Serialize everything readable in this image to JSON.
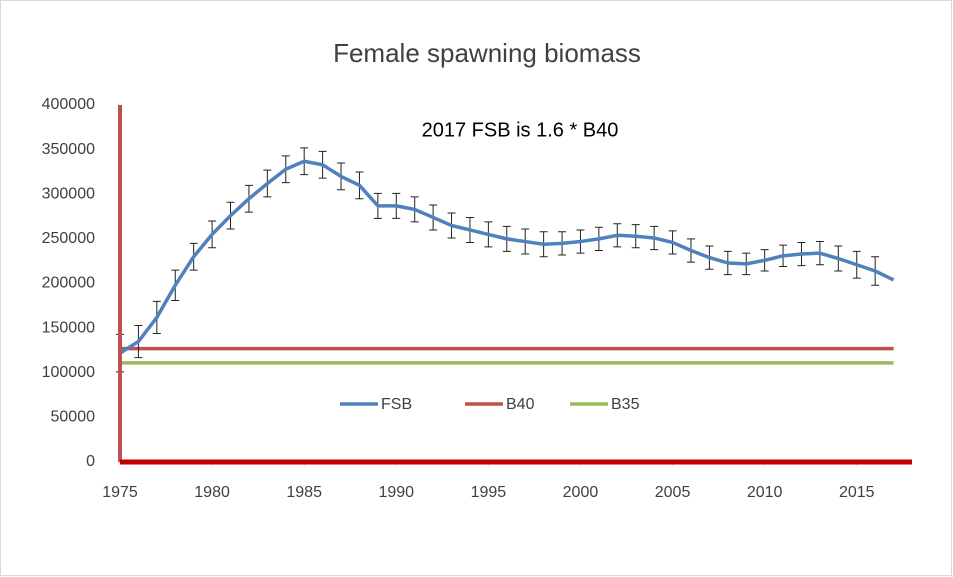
{
  "chart_data": {
    "type": "line",
    "title": "Female spawning biomass",
    "annotation": "2017 FSB is 1.6 * B40",
    "x": [
      1975,
      1976,
      1977,
      1978,
      1979,
      1980,
      1981,
      1982,
      1983,
      1984,
      1985,
      1986,
      1987,
      1988,
      1989,
      1990,
      1991,
      1992,
      1993,
      1994,
      1995,
      1996,
      1997,
      1998,
      1999,
      2000,
      2001,
      2002,
      2003,
      2004,
      2005,
      2006,
      2007,
      2008,
      2009,
      2010,
      2011,
      2012,
      2013,
      2014,
      2015,
      2016,
      2017
    ],
    "series": [
      {
        "name": "FSB",
        "color": "#4f81bd",
        "values": [
          122000,
          135000,
          162000,
          198000,
          230000,
          255000,
          276000,
          295000,
          312000,
          328000,
          337000,
          333000,
          320000,
          310000,
          287000,
          287000,
          283000,
          274000,
          265000,
          260000,
          255000,
          250000,
          247000,
          244000,
          245000,
          247000,
          250000,
          254000,
          253000,
          251000,
          246000,
          237000,
          229000,
          223000,
          222000,
          226000,
          231000,
          233000,
          234000,
          228000,
          221000,
          214000,
          204000
        ],
        "errors": [
          21000,
          18000,
          18000,
          17000,
          15000,
          15000,
          15000,
          15000,
          15000,
          15000,
          15000,
          15000,
          15000,
          15000,
          14000,
          14000,
          14000,
          14000,
          14000,
          14000,
          14000,
          14000,
          14000,
          14000,
          13000,
          13000,
          13000,
          13000,
          13000,
          13000,
          13000,
          13000,
          13000,
          13000,
          12000,
          12000,
          12000,
          13000,
          13000,
          14000,
          15000,
          16000,
          null
        ]
      },
      {
        "name": "B40",
        "color": "#c0504d",
        "values": [
          127000,
          127000,
          127000,
          127000,
          127000,
          127000,
          127000,
          127000,
          127000,
          127000,
          127000,
          127000,
          127000,
          127000,
          127000,
          127000,
          127000,
          127000,
          127000,
          127000,
          127000,
          127000,
          127000,
          127000,
          127000,
          127000,
          127000,
          127000,
          127000,
          127000,
          127000,
          127000,
          127000,
          127000,
          127000,
          127000,
          127000,
          127000,
          127000,
          127000,
          127000,
          127000,
          127000
        ]
      },
      {
        "name": "B35",
        "color": "#9bbb59",
        "values": [
          111000,
          111000,
          111000,
          111000,
          111000,
          111000,
          111000,
          111000,
          111000,
          111000,
          111000,
          111000,
          111000,
          111000,
          111000,
          111000,
          111000,
          111000,
          111000,
          111000,
          111000,
          111000,
          111000,
          111000,
          111000,
          111000,
          111000,
          111000,
          111000,
          111000,
          111000,
          111000,
          111000,
          111000,
          111000,
          111000,
          111000,
          111000,
          111000,
          111000,
          111000,
          111000,
          111000
        ]
      }
    ],
    "xlim": [
      1975,
      2018
    ],
    "xticks": [
      1975,
      1980,
      1985,
      1990,
      1995,
      2000,
      2005,
      2010,
      2015
    ],
    "ylim": [
      0,
      400000
    ],
    "yticks": [
      0,
      50000,
      100000,
      150000,
      200000,
      250000,
      300000,
      350000,
      400000
    ],
    "legend": "bottom"
  }
}
